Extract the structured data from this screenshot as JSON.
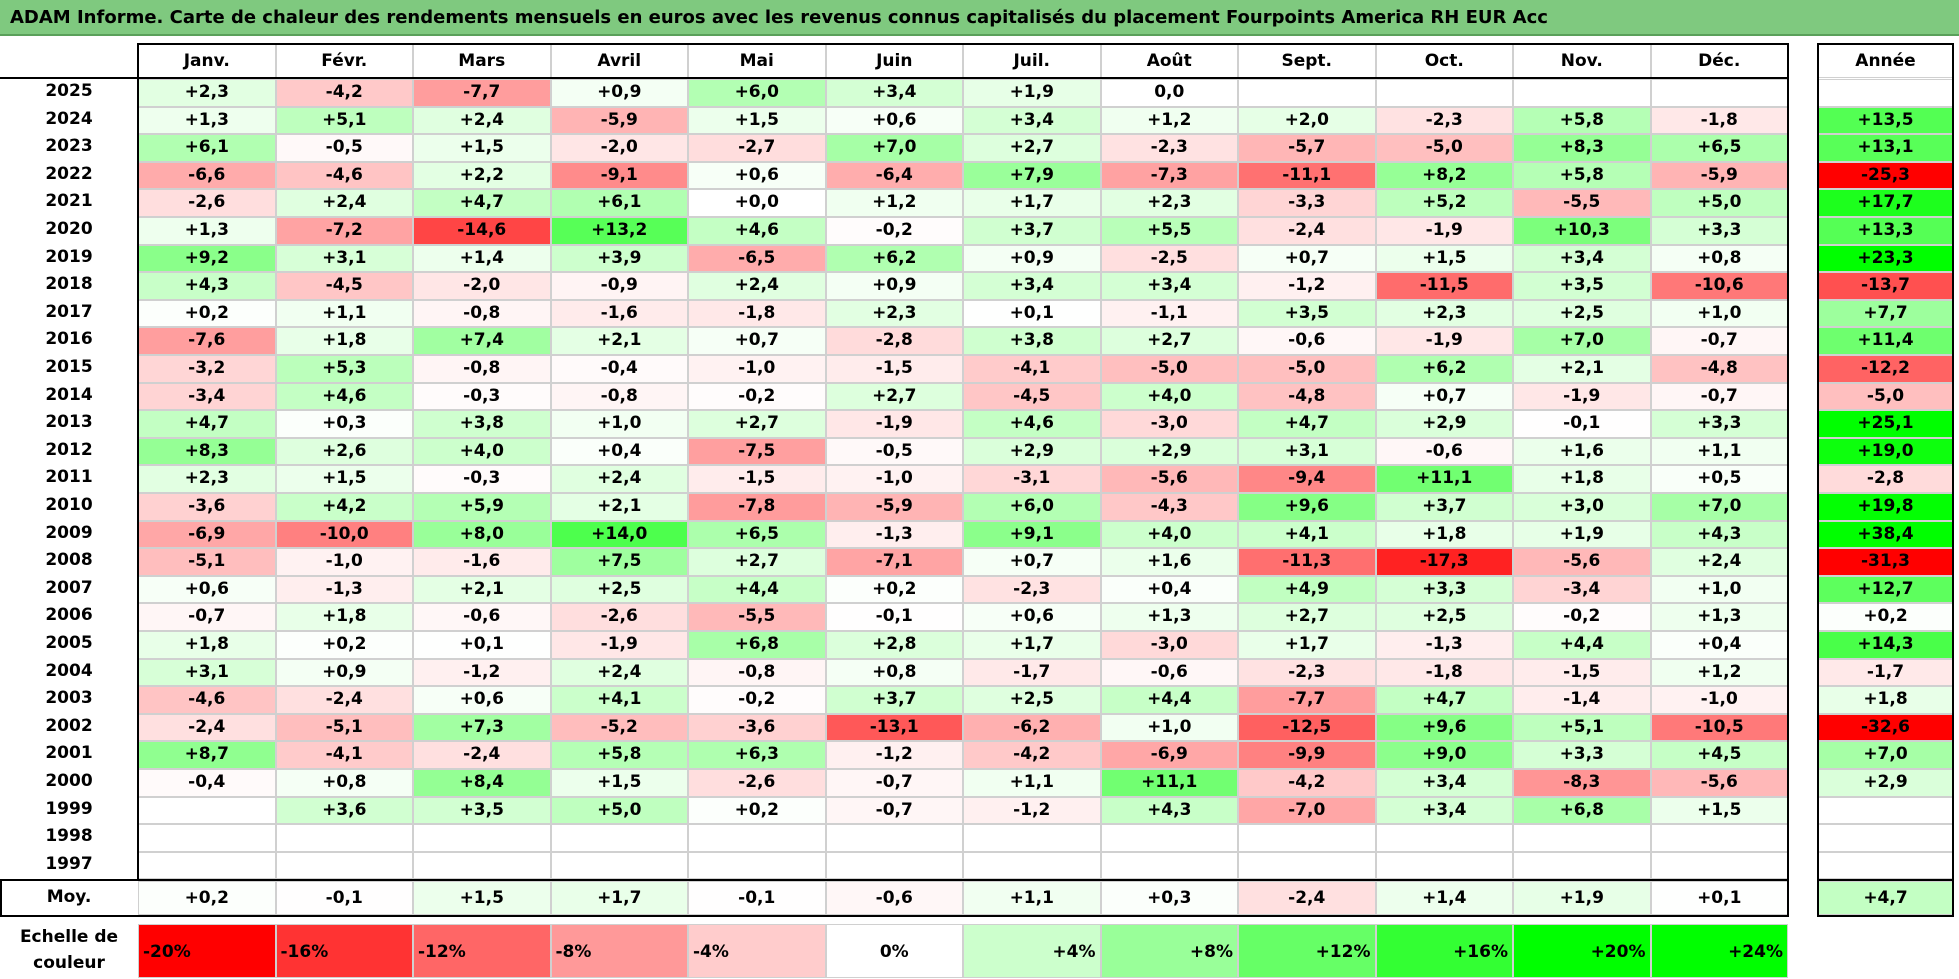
{
  "title": "ADAM Informe. Carte de chaleur des rendements mensuels en euros avec les revenus connus capitalisés du placement Fourpoints America RH EUR Acc",
  "chart_data": {
    "type": "heatmap",
    "columns": [
      "Janv.",
      "Févr.",
      "Mars",
      "Avril",
      "Mai",
      "Juin",
      "Juil.",
      "Août",
      "Sept.",
      "Oct.",
      "Nov.",
      "Déc."
    ],
    "year_label": "Année",
    "avg_label": "Moy.",
    "rows": [
      {
        "year": "2025",
        "values": [
          "+2,3",
          "-4,2",
          "-7,7",
          "+0,9",
          "+6,0",
          "+3,4",
          "+1,9",
          "0,0",
          "",
          "",
          "",
          ""
        ],
        "annual": ""
      },
      {
        "year": "2024",
        "values": [
          "+1,3",
          "+5,1",
          "+2,4",
          "-5,9",
          "+1,5",
          "+0,6",
          "+3,4",
          "+1,2",
          "+2,0",
          "-2,3",
          "+5,8",
          "-1,8"
        ],
        "annual": "+13,5"
      },
      {
        "year": "2023",
        "values": [
          "+6,1",
          "-0,5",
          "+1,5",
          "-2,0",
          "-2,7",
          "+7,0",
          "+2,7",
          "-2,3",
          "-5,7",
          "-5,0",
          "+8,3",
          "+6,5"
        ],
        "annual": "+13,1"
      },
      {
        "year": "2022",
        "values": [
          "-6,6",
          "-4,6",
          "+2,2",
          "-9,1",
          "+0,6",
          "-6,4",
          "+7,9",
          "-7,3",
          "-11,1",
          "+8,2",
          "+5,8",
          "-5,9"
        ],
        "annual": "-25,3"
      },
      {
        "year": "2021",
        "values": [
          "-2,6",
          "+2,4",
          "+4,7",
          "+6,1",
          "+0,0",
          "+1,2",
          "+1,7",
          "+2,3",
          "-3,3",
          "+5,2",
          "-5,5",
          "+5,0"
        ],
        "annual": "+17,7"
      },
      {
        "year": "2020",
        "values": [
          "+1,3",
          "-7,2",
          "-14,6",
          "+13,2",
          "+4,6",
          "-0,2",
          "+3,7",
          "+5,5",
          "-2,4",
          "-1,9",
          "+10,3",
          "+3,3"
        ],
        "annual": "+13,3"
      },
      {
        "year": "2019",
        "values": [
          "+9,2",
          "+3,1",
          "+1,4",
          "+3,9",
          "-6,5",
          "+6,2",
          "+0,9",
          "-2,5",
          "+0,7",
          "+1,5",
          "+3,4",
          "+0,8"
        ],
        "annual": "+23,3"
      },
      {
        "year": "2018",
        "values": [
          "+4,3",
          "-4,5",
          "-2,0",
          "-0,9",
          "+2,4",
          "+0,9",
          "+3,4",
          "+3,4",
          "-1,2",
          "-11,5",
          "+3,5",
          "-10,6"
        ],
        "annual": "-13,7"
      },
      {
        "year": "2017",
        "values": [
          "+0,2",
          "+1,1",
          "-0,8",
          "-1,6",
          "-1,8",
          "+2,3",
          "+0,1",
          "-1,1",
          "+3,5",
          "+2,3",
          "+2,5",
          "+1,0"
        ],
        "annual": "+7,7"
      },
      {
        "year": "2016",
        "values": [
          "-7,6",
          "+1,8",
          "+7,4",
          "+2,1",
          "+0,7",
          "-2,8",
          "+3,8",
          "+2,7",
          "-0,6",
          "-1,9",
          "+7,0",
          "-0,7"
        ],
        "annual": "+11,4"
      },
      {
        "year": "2015",
        "values": [
          "-3,2",
          "+5,3",
          "-0,8",
          "-0,4",
          "-1,0",
          "-1,5",
          "-4,1",
          "-5,0",
          "-5,0",
          "+6,2",
          "+2,1",
          "-4,8"
        ],
        "annual": "-12,2"
      },
      {
        "year": "2014",
        "values": [
          "-3,4",
          "+4,6",
          "-0,3",
          "-0,8",
          "-0,2",
          "+2,7",
          "-4,5",
          "+4,0",
          "-4,8",
          "+0,7",
          "-1,9",
          "-0,7"
        ],
        "annual": "-5,0"
      },
      {
        "year": "2013",
        "values": [
          "+4,7",
          "+0,3",
          "+3,8",
          "+1,0",
          "+2,7",
          "-1,9",
          "+4,6",
          "-3,0",
          "+4,7",
          "+2,9",
          "-0,1",
          "+3,3"
        ],
        "annual": "+25,1"
      },
      {
        "year": "2012",
        "values": [
          "+8,3",
          "+2,6",
          "+4,0",
          "+0,4",
          "-7,5",
          "-0,5",
          "+2,9",
          "+2,9",
          "+3,1",
          "-0,6",
          "+1,6",
          "+1,1"
        ],
        "annual": "+19,0"
      },
      {
        "year": "2011",
        "values": [
          "+2,3",
          "+1,5",
          "-0,3",
          "+2,4",
          "-1,5",
          "-1,0",
          "-3,1",
          "-5,6",
          "-9,4",
          "+11,1",
          "+1,8",
          "+0,5"
        ],
        "annual": "-2,8"
      },
      {
        "year": "2010",
        "values": [
          "-3,6",
          "+4,2",
          "+5,9",
          "+2,1",
          "-7,8",
          "-5,9",
          "+6,0",
          "-4,3",
          "+9,6",
          "+3,7",
          "+3,0",
          "+7,0"
        ],
        "annual": "+19,8"
      },
      {
        "year": "2009",
        "values": [
          "-6,9",
          "-10,0",
          "+8,0",
          "+14,0",
          "+6,5",
          "-1,3",
          "+9,1",
          "+4,0",
          "+4,1",
          "+1,8",
          "+1,9",
          "+4,3"
        ],
        "annual": "+38,4"
      },
      {
        "year": "2008",
        "values": [
          "-5,1",
          "-1,0",
          "-1,6",
          "+7,5",
          "+2,7",
          "-7,1",
          "+0,7",
          "+1,6",
          "-11,3",
          "-17,3",
          "-5,6",
          "+2,4"
        ],
        "annual": "-31,3"
      },
      {
        "year": "2007",
        "values": [
          "+0,6",
          "-1,3",
          "+2,1",
          "+2,5",
          "+4,4",
          "+0,2",
          "-2,3",
          "+0,4",
          "+4,9",
          "+3,3",
          "-3,4",
          "+1,0"
        ],
        "annual": "+12,7"
      },
      {
        "year": "2006",
        "values": [
          "-0,7",
          "+1,8",
          "-0,6",
          "-2,6",
          "-5,5",
          "-0,1",
          "+0,6",
          "+1,3",
          "+2,7",
          "+2,5",
          "-0,2",
          "+1,3"
        ],
        "annual": "+0,2"
      },
      {
        "year": "2005",
        "values": [
          "+1,8",
          "+0,2",
          "+0,1",
          "-1,9",
          "+6,8",
          "+2,8",
          "+1,7",
          "-3,0",
          "+1,7",
          "-1,3",
          "+4,4",
          "+0,4"
        ],
        "annual": "+14,3"
      },
      {
        "year": "2004",
        "values": [
          "+3,1",
          "+0,9",
          "-1,2",
          "+2,4",
          "-0,8",
          "+0,8",
          "-1,7",
          "-0,6",
          "-2,3",
          "-1,8",
          "-1,5",
          "+1,2"
        ],
        "annual": "-1,7"
      },
      {
        "year": "2003",
        "values": [
          "-4,6",
          "-2,4",
          "+0,6",
          "+4,1",
          "-0,2",
          "+3,7",
          "+2,5",
          "+4,4",
          "-7,7",
          "+4,7",
          "-1,4",
          "-1,0"
        ],
        "annual": "+1,8"
      },
      {
        "year": "2002",
        "values": [
          "-2,4",
          "-5,1",
          "+7,3",
          "-5,2",
          "-3,6",
          "-13,1",
          "-6,2",
          "+1,0",
          "-12,5",
          "+9,6",
          "+5,1",
          "-10,5"
        ],
        "annual": "-32,6"
      },
      {
        "year": "2001",
        "values": [
          "+8,7",
          "-4,1",
          "-2,4",
          "+5,8",
          "+6,3",
          "-1,2",
          "-4,2",
          "-6,9",
          "-9,9",
          "+9,0",
          "+3,3",
          "+4,5"
        ],
        "annual": "+7,0"
      },
      {
        "year": "2000",
        "values": [
          "-0,4",
          "+0,8",
          "+8,4",
          "+1,5",
          "-2,6",
          "-0,7",
          "+1,1",
          "+11,1",
          "-4,2",
          "+3,4",
          "-8,3",
          "-5,6"
        ],
        "annual": "+2,9"
      },
      {
        "year": "1999",
        "values": [
          "",
          "+3,6",
          "+3,5",
          "+5,0",
          "+0,2",
          "-0,7",
          "-1,2",
          "+4,3",
          "-7,0",
          "+3,4",
          "+6,8",
          "+1,5"
        ],
        "annual": ""
      },
      {
        "year": "1998",
        "values": [
          "",
          "",
          "",
          "",
          "",
          "",
          "",
          "",
          "",
          "",
          "",
          ""
        ],
        "annual": ""
      },
      {
        "year": "1997",
        "values": [
          "",
          "",
          "",
          "",
          "",
          "",
          "",
          "",
          "",
          "",
          "",
          ""
        ],
        "annual": ""
      }
    ],
    "averages": [
      "+0,2",
      "-0,1",
      "+1,5",
      "+1,7",
      "-0,1",
      "-0,6",
      "+1,1",
      "+0,3",
      "-2,4",
      "+1,4",
      "+1,9",
      "+0,1"
    ],
    "average_annual": "+4,7",
    "color_scale": {
      "title": "Echelle de couleur",
      "stops": [
        {
          "label": "-20%",
          "value": -20,
          "color": "#ff0000"
        },
        {
          "label": "-16%",
          "value": -16,
          "color": "#ff3333"
        },
        {
          "label": "-12%",
          "value": -12,
          "color": "#ff6666"
        },
        {
          "label": "-8%",
          "value": -8,
          "color": "#ff9999"
        },
        {
          "label": "-4%",
          "value": -4,
          "color": "#ffcccc"
        },
        {
          "label": "0%",
          "value": 0,
          "color": "#ffffff"
        },
        {
          "label": "+4%",
          "value": 4,
          "color": "#ccffcc"
        },
        {
          "label": "+8%",
          "value": 8,
          "color": "#99ff99"
        },
        {
          "label": "+12%",
          "value": 12,
          "color": "#66ff66"
        },
        {
          "label": "+16%",
          "value": 16,
          "color": "#33ff33"
        },
        {
          "label": "+20%",
          "value": 20,
          "color": "#00ff00"
        },
        {
          "label": "+24%",
          "value": 24,
          "color": "#00ff00"
        }
      ]
    }
  }
}
